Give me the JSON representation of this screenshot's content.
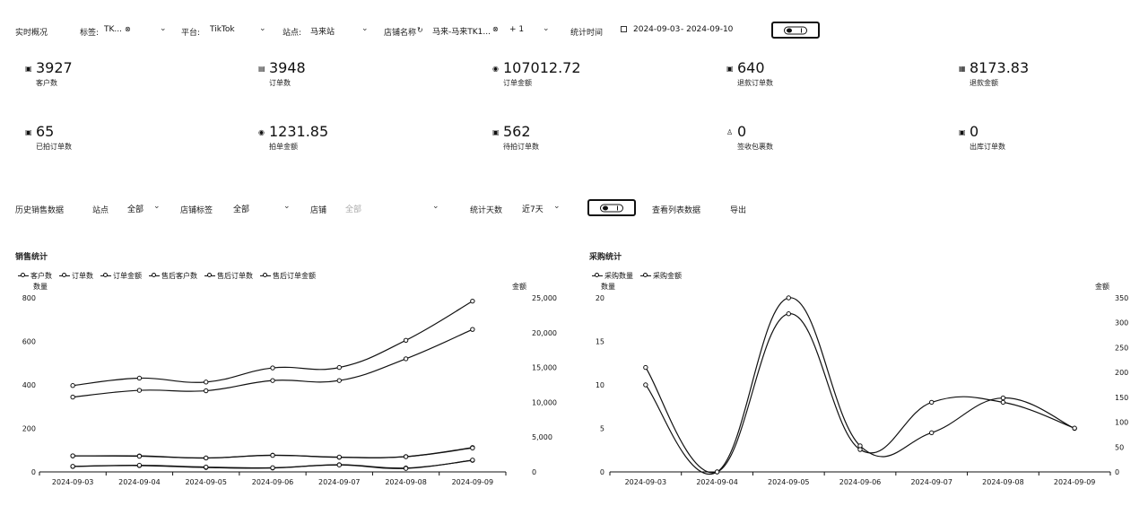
{
  "filters": {
    "title": "实时概况",
    "tags_label": "标签:",
    "tags_value": "TK...",
    "platform_label": "平台:",
    "platform_value": "TikTok",
    "site_label": "站点:",
    "site_value": "马来站",
    "store_label": "店铺名称",
    "store_value": "马来-马来TK1...",
    "store_extra": "+ 1",
    "period_label": "统计时间",
    "date_start": "2024-09-03",
    "date_end": "- 2024-09-10"
  },
  "metrics": [
    {
      "value": "3927",
      "caption": "客户数",
      "icon": "shop-icon"
    },
    {
      "value": "3948",
      "caption": "订单数",
      "icon": "order-icon"
    },
    {
      "value": "107012.72",
      "caption": "订单金额",
      "icon": "money-icon"
    },
    {
      "value": "640",
      "caption": "退款订单数",
      "icon": "refund-icon"
    },
    {
      "value": "8173.83",
      "caption": "退款金额",
      "icon": "refund-amount-icon"
    },
    {
      "value": "65",
      "caption": "已拍订单数",
      "icon": "shop-icon"
    },
    {
      "value": "1231.85",
      "caption": "拍单金额",
      "icon": "money-icon"
    },
    {
      "value": "562",
      "caption": "待拍订单数",
      "icon": "pending-icon"
    },
    {
      "value": "0",
      "caption": "签收包裹数",
      "icon": "user-icon"
    },
    {
      "value": "0",
      "caption": "出库订单数",
      "icon": "outbound-icon"
    }
  ],
  "history": {
    "title": "历史销售数据",
    "site_label": "站点",
    "site_value": "全部",
    "store_tag_label": "店铺标签",
    "store_tag_value": "全部",
    "store_label": "店铺",
    "store_value": "全部",
    "days_label": "统计天数",
    "days_value": "近7天",
    "view_list": "查看列表数据",
    "export": "导出"
  },
  "sales_chart": {
    "title": "销售统计",
    "left_axis_title": "数量",
    "right_axis_title": "金额",
    "legend": [
      "客户数",
      "订单数",
      "订单金额",
      "售后客户数",
      "售后订单数",
      "售后订单金额"
    ]
  },
  "purchase_chart": {
    "title": "采购统计",
    "left_axis_title": "数量",
    "right_axis_title": "金额",
    "legend": [
      "采购数量",
      "采购金额"
    ]
  },
  "chart_data": [
    {
      "type": "line",
      "x": [
        "2024-09-03",
        "2024-09-04",
        "2024-09-05",
        "2024-09-06",
        "2024-09-07",
        "2024-09-08",
        "2024-09-09"
      ],
      "y_left_ticks": [
        "0",
        "200",
        "400",
        "600",
        "800"
      ],
      "y_right_ticks": [
        "0",
        "5,000",
        "10,000",
        "15,000",
        "20,000",
        "25,000"
      ],
      "ylim_left": [
        0,
        800
      ],
      "ylim_right": [
        0,
        25000
      ],
      "series": [
        {
          "name": "客户数",
          "axis": "left",
          "values": [
            344,
            375,
            373,
            420,
            420,
            520,
            655
          ]
        },
        {
          "name": "订单数",
          "axis": "left",
          "values": [
            397,
            431,
            413,
            478,
            480,
            605,
            785
          ]
        },
        {
          "name": "订单金额",
          "axis": "right",
          "values": [
            2300,
            2300,
            2000,
            2400,
            2100,
            2200,
            3500
          ]
        },
        {
          "name": "售后客户数",
          "axis": "left",
          "values": [
            25,
            29,
            20,
            18,
            33,
            18,
            53
          ]
        },
        {
          "name": "售后订单数",
          "axis": "left",
          "values": [
            74,
            72,
            64,
            76,
            68,
            70,
            110
          ]
        },
        {
          "name": "售后订单金额",
          "axis": "right",
          "values": [
            800,
            950,
            700,
            600,
            1000,
            500,
            1700
          ]
        }
      ]
    },
    {
      "type": "line",
      "x": [
        "2024-09-03",
        "2024-09-04",
        "2024-09-05",
        "2024-09-06",
        "2024-09-07",
        "2024-09-08",
        "2024-09-09"
      ],
      "y_left_ticks": [
        "0",
        "5",
        "10",
        "15",
        "20"
      ],
      "y_right_ticks": [
        "0",
        "50",
        "100",
        "150",
        "200",
        "250",
        "300",
        "350"
      ],
      "ylim_left": [
        0,
        20
      ],
      "ylim_right": [
        0,
        350
      ],
      "series": [
        {
          "name": "采购数量",
          "axis": "left",
          "values": [
            10,
            0,
            20,
            3,
            4.5,
            8.5,
            5
          ]
        },
        {
          "name": "采购金额",
          "axis": "right",
          "values": [
            210,
            0,
            318,
            45,
            140,
            140,
            88
          ]
        }
      ]
    }
  ]
}
